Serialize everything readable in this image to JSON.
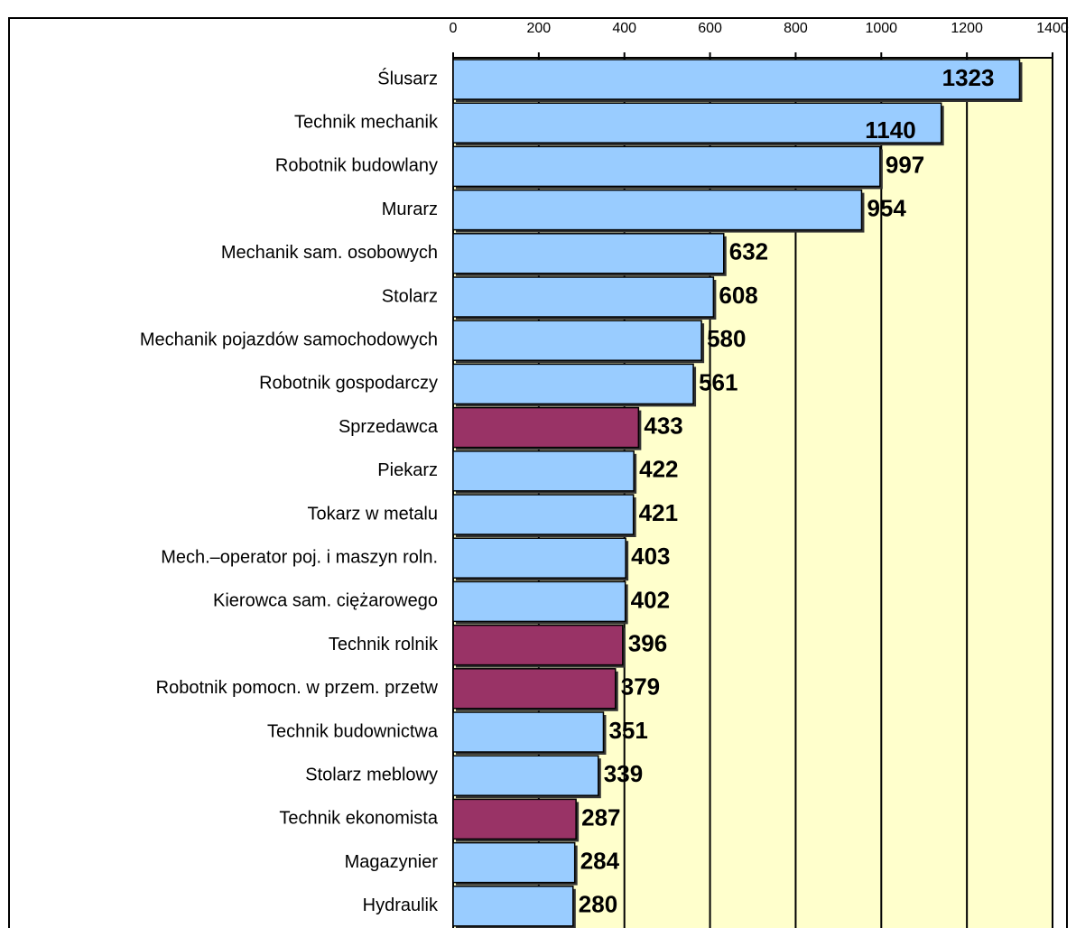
{
  "chart_data": {
    "type": "bar",
    "orientation": "horizontal",
    "categories": [
      "Ślusarz",
      "Technik mechanik",
      "Robotnik budowlany",
      "Murarz",
      "Mechanik sam. osobowych",
      "Stolarz",
      "Mechanik pojazdów samochodowych",
      "Robotnik gospodarczy",
      "Sprzedawca",
      "Piekarz",
      "Tokarz w metalu",
      "Mech.–operator poj. i maszyn roln.",
      "Kierowca sam. ciężarowego",
      "Technik rolnik",
      "Robotnik pomocn. w przem. przetw",
      "Technik budownictwa",
      "Stolarz meblowy",
      "Technik ekonomista",
      "Magazynier",
      "Hydraulik"
    ],
    "values": [
      1323,
      1140,
      997,
      954,
      632,
      608,
      580,
      561,
      433,
      422,
      421,
      403,
      402,
      396,
      379,
      351,
      339,
      287,
      284,
      280
    ],
    "colors": [
      "#99ccff",
      "#99ccff",
      "#99ccff",
      "#99ccff",
      "#99ccff",
      "#99ccff",
      "#99ccff",
      "#99ccff",
      "#993366",
      "#99ccff",
      "#99ccff",
      "#99ccff",
      "#99ccff",
      "#993366",
      "#993366",
      "#99ccff",
      "#99ccff",
      "#993366",
      "#99ccff",
      "#99ccff"
    ],
    "xlim": [
      0,
      1400
    ],
    "xticks": [
      0,
      200,
      400,
      600,
      800,
      1000,
      1200,
      1400
    ],
    "grid": true,
    "plot_background": "#ffffcc"
  }
}
